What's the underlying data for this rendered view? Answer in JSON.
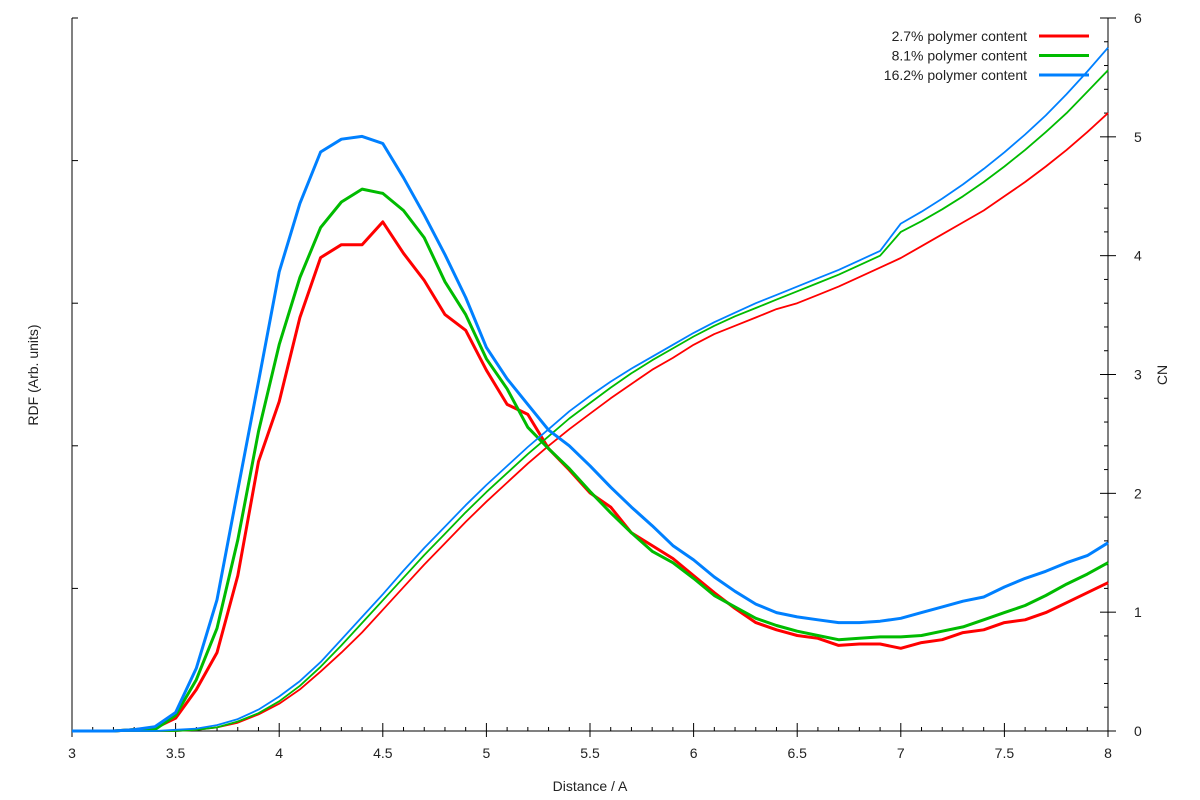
{
  "chart_data": {
    "type": "line",
    "title": "",
    "xlabel": "Distance / A",
    "ylabel": "RDF (Arb. units)",
    "y2label": "CN",
    "xlim": [
      3,
      8
    ],
    "ylim": [
      0,
      5
    ],
    "y2lim": [
      0,
      6
    ],
    "xticks": [
      "3",
      "3.5",
      "4",
      "4.5",
      "5",
      "5.5",
      "6",
      "6.5",
      "7",
      "7.5",
      "8"
    ],
    "y2ticks": [
      "0",
      "1",
      "2",
      "3",
      "4",
      "5",
      "6"
    ],
    "legend_position": "top-right",
    "x": [
      3.0,
      3.1,
      3.2,
      3.3,
      3.4,
      3.5,
      3.6,
      3.7,
      3.8,
      3.9,
      4.0,
      4.1,
      4.2,
      4.3,
      4.4,
      4.5,
      4.6,
      4.7,
      4.8,
      4.9,
      5.0,
      5.1,
      5.2,
      5.3,
      5.4,
      5.5,
      5.6,
      5.7,
      5.8,
      5.9,
      6.0,
      6.1,
      6.2,
      6.3,
      6.4,
      6.5,
      6.6,
      6.7,
      6.8,
      6.9,
      7.0,
      7.1,
      7.2,
      7.3,
      7.4,
      7.5,
      7.6,
      7.7,
      7.8,
      7.9,
      8.0
    ],
    "series": [
      {
        "name": "2.7% polymer content",
        "color": "#ff0000",
        "rdf": [
          0,
          0,
          0,
          0.01,
          0.02,
          0.09,
          0.29,
          0.55,
          1.09,
          1.89,
          2.31,
          2.9,
          3.32,
          3.41,
          3.41,
          3.57,
          3.35,
          3.16,
          2.92,
          2.81,
          2.53,
          2.29,
          2.22,
          1.98,
          1.83,
          1.67,
          1.57,
          1.39,
          1.3,
          1.21,
          1.09,
          0.97,
          0.86,
          0.76,
          0.71,
          0.67,
          0.65,
          0.6,
          0.61,
          0.61,
          0.58,
          0.62,
          0.64,
          0.69,
          0.71,
          0.76,
          0.78,
          0.83,
          0.9,
          0.97,
          1.04
        ],
        "cn": [
          0,
          0,
          0,
          0,
          0,
          0,
          0.01,
          0.03,
          0.07,
          0.14,
          0.23,
          0.35,
          0.5,
          0.66,
          0.83,
          1.02,
          1.21,
          1.4,
          1.58,
          1.76,
          1.93,
          2.09,
          2.25,
          2.4,
          2.54,
          2.67,
          2.8,
          2.92,
          3.04,
          3.14,
          3.25,
          3.34,
          3.41,
          3.48,
          3.55,
          3.6,
          3.67,
          3.74,
          3.82,
          3.9,
          3.98,
          4.08,
          4.18,
          4.28,
          4.38,
          4.5,
          4.62,
          4.75,
          4.89,
          5.04,
          5.2
        ]
      },
      {
        "name": "8.1% polymer content",
        "color": "#00bb00",
        "rdf": [
          0,
          0,
          0,
          0.01,
          0.01,
          0.11,
          0.36,
          0.72,
          1.34,
          2.1,
          2.71,
          3.18,
          3.53,
          3.71,
          3.8,
          3.77,
          3.65,
          3.46,
          3.15,
          2.92,
          2.61,
          2.4,
          2.13,
          1.98,
          1.84,
          1.68,
          1.53,
          1.39,
          1.26,
          1.18,
          1.07,
          0.95,
          0.87,
          0.79,
          0.74,
          0.7,
          0.67,
          0.64,
          0.65,
          0.66,
          0.66,
          0.67,
          0.7,
          0.73,
          0.78,
          0.83,
          0.88,
          0.95,
          1.03,
          1.1,
          1.18
        ],
        "cn": [
          0,
          0,
          0,
          0,
          0,
          0,
          0.01,
          0.03,
          0.08,
          0.15,
          0.25,
          0.38,
          0.54,
          0.72,
          0.91,
          1.1,
          1.29,
          1.48,
          1.66,
          1.84,
          2.01,
          2.17,
          2.33,
          2.48,
          2.63,
          2.76,
          2.89,
          3.01,
          3.12,
          3.22,
          3.32,
          3.41,
          3.49,
          3.56,
          3.63,
          3.7,
          3.77,
          3.84,
          3.92,
          4.0,
          4.2,
          4.29,
          4.39,
          4.5,
          4.62,
          4.75,
          4.89,
          5.04,
          5.2,
          5.38,
          5.56
        ]
      },
      {
        "name": "16.2% polymer content",
        "color": "#0080ff",
        "rdf": [
          0,
          0,
          0,
          0.01,
          0.03,
          0.13,
          0.44,
          0.92,
          1.69,
          2.45,
          3.22,
          3.7,
          4.06,
          4.15,
          4.17,
          4.12,
          3.88,
          3.62,
          3.34,
          3.04,
          2.69,
          2.47,
          2.29,
          2.11,
          2.0,
          1.86,
          1.71,
          1.57,
          1.44,
          1.3,
          1.2,
          1.08,
          0.98,
          0.89,
          0.83,
          0.8,
          0.78,
          0.76,
          0.76,
          0.77,
          0.79,
          0.83,
          0.87,
          0.91,
          0.94,
          1.01,
          1.07,
          1.12,
          1.18,
          1.23,
          1.32
        ],
        "cn": [
          0,
          0,
          0,
          0,
          0,
          0.01,
          0.02,
          0.05,
          0.1,
          0.18,
          0.29,
          0.42,
          0.58,
          0.77,
          0.96,
          1.15,
          1.35,
          1.54,
          1.72,
          1.9,
          2.07,
          2.23,
          2.39,
          2.54,
          2.69,
          2.82,
          2.94,
          3.05,
          3.15,
          3.25,
          3.35,
          3.44,
          3.52,
          3.6,
          3.67,
          3.74,
          3.81,
          3.88,
          3.96,
          4.04,
          4.27,
          4.37,
          4.48,
          4.6,
          4.73,
          4.87,
          5.02,
          5.18,
          5.36,
          5.55,
          5.75
        ]
      }
    ]
  }
}
